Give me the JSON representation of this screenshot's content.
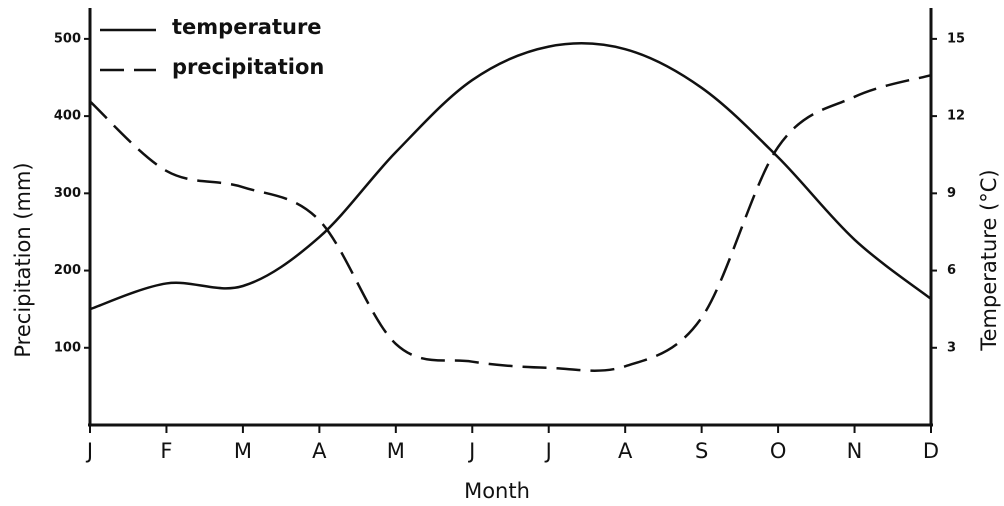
{
  "chart_data": {
    "type": "line",
    "xlabel": "Month",
    "ylabel": "Precipitation (mm)",
    "y2label": "Temperature (°C)",
    "categories": [
      "J",
      "F",
      "M",
      "A",
      "M",
      "J",
      "J",
      "A",
      "S",
      "O",
      "N",
      "D"
    ],
    "series": [
      {
        "name": "temperature",
        "color": "#111111",
        "dash": "solid",
        "axis": "y2",
        "values": [
          4.5,
          5.5,
          5.4,
          7.3,
          10.6,
          13.4,
          14.7,
          14.6,
          13.1,
          10.4,
          7.2,
          4.9
        ]
      },
      {
        "name": "precipitation",
        "color": "#111111",
        "dash": "dashed",
        "axis": "y",
        "values": [
          419,
          329,
          308,
          265,
          105,
          82,
          74,
          76,
          139,
          360,
          425,
          453
        ]
      }
    ],
    "ylim": [
      0,
      540
    ],
    "yticks": [
      100,
      200,
      300,
      400,
      500
    ],
    "y2lim": [
      0,
      16.2
    ],
    "y2ticks": [
      3,
      6,
      9,
      12,
      15
    ],
    "legend": "upper left"
  }
}
